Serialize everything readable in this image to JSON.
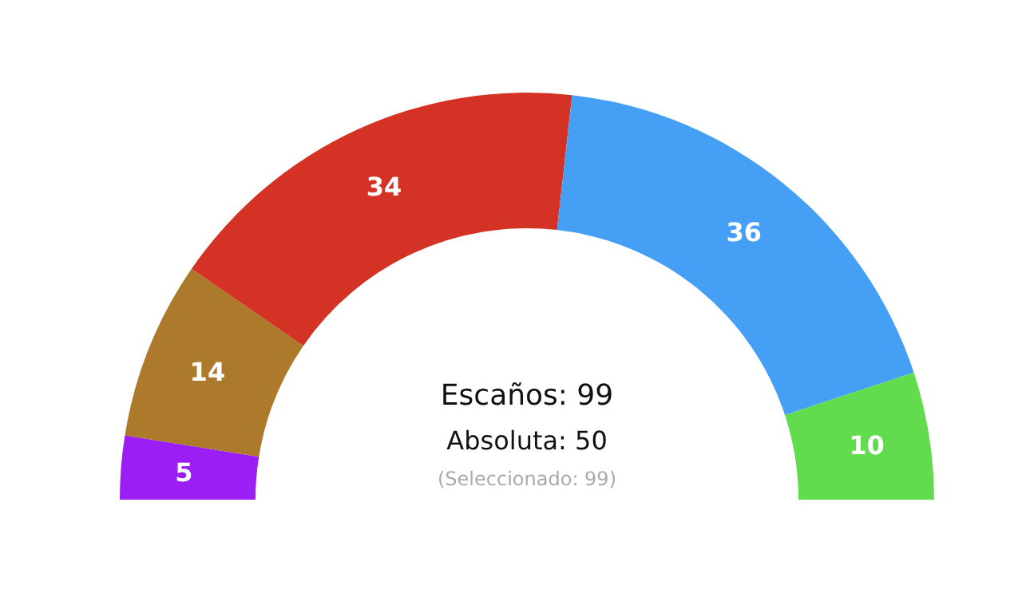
{
  "chart_data": {
    "type": "donut",
    "categories": [
      null,
      null,
      null,
      null,
      null
    ],
    "values": [
      5,
      14,
      34,
      36,
      10
    ],
    "colors": [
      "#9b1ff5",
      "#ad7a2b",
      "#d33224",
      "#449ff5",
      "#62dc4e"
    ],
    "data_labels": true,
    "annotations": [
      "Escaños: 99",
      "Absoluta: 50",
      "(Seleccionado: 99)"
    ]
  }
}
